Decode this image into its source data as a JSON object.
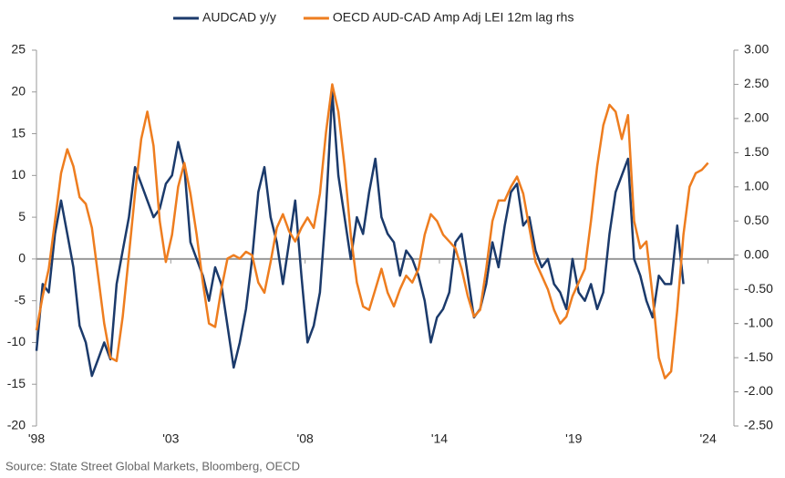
{
  "chart_data": {
    "type": "line",
    "source": "Source: State Street Global Markets, Bloomberg, OECD",
    "x": [
      1998,
      1998.25,
      1998.5,
      1998.75,
      1999,
      1999.25,
      1999.5,
      1999.75,
      2000,
      2000.25,
      2000.5,
      2000.75,
      2001,
      2001.25,
      2001.5,
      2001.75,
      2002,
      2002.25,
      2002.5,
      2002.75,
      2003,
      2003.25,
      2003.5,
      2003.75,
      2004,
      2004.25,
      2004.5,
      2004.75,
      2005,
      2005.25,
      2005.5,
      2005.75,
      2006,
      2006.25,
      2006.5,
      2006.75,
      2007,
      2007.25,
      2007.5,
      2007.75,
      2008,
      2008.25,
      2008.5,
      2008.75,
      2009,
      2009.25,
      2009.5,
      2009.75,
      2010,
      2010.25,
      2010.5,
      2010.75,
      2011,
      2011.25,
      2011.5,
      2011.75,
      2012,
      2012.25,
      2012.5,
      2012.75,
      2013,
      2013.25,
      2013.5,
      2013.75,
      2014,
      2014.25,
      2014.5,
      2014.75,
      2015,
      2015.25,
      2015.5,
      2015.75,
      2016,
      2016.25,
      2016.5,
      2016.75,
      2017,
      2017.25,
      2017.5,
      2017.75,
      2018,
      2018.25,
      2018.5,
      2018.75,
      2019,
      2019.25,
      2019.5,
      2019.75,
      2020,
      2020.25,
      2020.5,
      2020.75,
      2021,
      2021.25,
      2021.5,
      2021.75,
      2022,
      2022.25,
      2022.5,
      2022.75,
      2023,
      2023.25,
      2023.5,
      2023.75,
      2024,
      2024.25,
      2024.5,
      2024.75,
      2025,
      2025.25
    ],
    "series": [
      {
        "name": "AUDCAD y/y",
        "color": "#1b3a6b",
        "axis": "y",
        "values": [
          -11,
          -3,
          -4,
          3,
          7,
          3,
          -1,
          -8,
          -10,
          -14,
          -12,
          -10,
          -12,
          -3,
          1,
          5,
          11,
          9,
          7,
          5,
          6,
          9,
          10,
          14,
          11,
          2,
          0,
          -2,
          -5,
          -1,
          -3,
          -8,
          -13,
          -10,
          -6,
          0,
          8,
          11,
          5,
          2,
          -3,
          2,
          7,
          -2,
          -10,
          -8,
          -4,
          6,
          20,
          10,
          5,
          0,
          5,
          3,
          8,
          12,
          5,
          3,
          2,
          -2,
          1,
          0,
          -2,
          -5,
          -10,
          -7,
          -6,
          -4,
          2,
          3,
          -2,
          -7,
          -6,
          -3,
          2,
          -1,
          4,
          8,
          9,
          4,
          5,
          1,
          -1,
          0,
          -3,
          -4,
          -6,
          0,
          -4,
          -5,
          -3,
          -6,
          -4,
          3,
          8,
          10,
          12,
          0,
          -2,
          -5,
          -7,
          -2,
          -3,
          -3,
          4,
          -3,
          null,
          null,
          null,
          null
        ]
      },
      {
        "name": "OECD AUD-CAD Amp Adj LEI 12m lag rhs",
        "color": "#ee7d1f",
        "axis": "y2",
        "values": [
          -1.1,
          -0.6,
          -0.2,
          0.5,
          1.2,
          1.55,
          1.3,
          0.85,
          0.75,
          0.4,
          -0.3,
          -1.0,
          -1.5,
          -1.55,
          -0.9,
          0.0,
          0.9,
          1.7,
          2.1,
          1.6,
          0.5,
          -0.1,
          0.3,
          1.0,
          1.35,
          0.9,
          0.3,
          -0.4,
          -1.0,
          -1.05,
          -0.5,
          -0.05,
          0.0,
          -0.05,
          0.05,
          0.0,
          -0.4,
          -0.55,
          -0.1,
          0.4,
          0.6,
          0.35,
          0.2,
          0.4,
          0.55,
          0.4,
          0.9,
          1.8,
          2.5,
          2.1,
          1.3,
          0.3,
          -0.4,
          -0.75,
          -0.8,
          -0.5,
          -0.2,
          -0.55,
          -0.75,
          -0.5,
          -0.3,
          -0.4,
          -0.2,
          0.3,
          0.6,
          0.5,
          0.3,
          0.2,
          0.1,
          -0.2,
          -0.6,
          -0.9,
          -0.8,
          -0.2,
          0.5,
          0.8,
          0.8,
          1.0,
          1.15,
          0.9,
          0.4,
          -0.1,
          -0.3,
          -0.5,
          -0.8,
          -1.0,
          -0.9,
          -0.6,
          -0.4,
          -0.2,
          0.5,
          1.3,
          1.9,
          2.2,
          2.1,
          1.7,
          2.05,
          0.5,
          0.1,
          0.2,
          -0.6,
          -1.5,
          -1.8,
          -1.7,
          -0.8,
          0.3,
          1.0,
          1.2,
          1.25,
          1.35
        ]
      }
    ],
    "xlim": [
      1998,
      2026.3
    ],
    "xticks": [
      {
        "value": 1998,
        "label": "'98"
      },
      {
        "value": 2003.45,
        "label": "'03"
      },
      {
        "value": 2008.9,
        "label": "'08"
      },
      {
        "value": 2014.35,
        "label": "'14"
      },
      {
        "value": 2019.8,
        "label": "'19"
      },
      {
        "value": 2025.25,
        "label": "'24"
      }
    ],
    "ylim": [
      -20,
      25
    ],
    "yticks": [
      -20,
      -15,
      -10,
      -5,
      0,
      5,
      10,
      15,
      20,
      25
    ],
    "y2lim": [
      -2.5,
      3
    ],
    "y2ticks": [
      {
        "value": -2.5,
        "label": "-2.50"
      },
      {
        "value": -2,
        "label": "-2.00"
      },
      {
        "value": -1.5,
        "label": "-1.50"
      },
      {
        "value": -1,
        "label": "-1.00"
      },
      {
        "value": -0.5,
        "label": "-0.50"
      },
      {
        "value": 0,
        "label": "0.00"
      },
      {
        "value": 0.5,
        "label": "0.50"
      },
      {
        "value": 1,
        "label": "1.00"
      },
      {
        "value": 1.5,
        "label": "1.50"
      },
      {
        "value": 2,
        "label": "2.00"
      },
      {
        "value": 2.5,
        "label": "2.50"
      },
      {
        "value": 3,
        "label": "3.00"
      }
    ],
    "legend": "top"
  }
}
